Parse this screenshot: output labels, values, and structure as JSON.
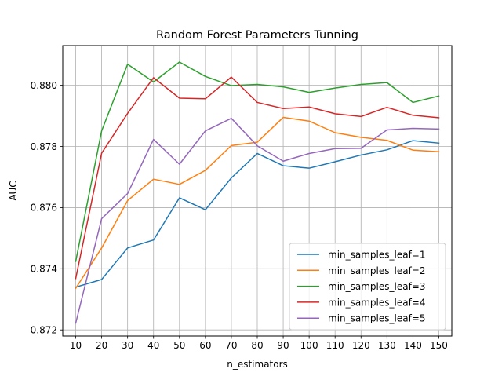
{
  "chart_data": {
    "type": "line",
    "title": "Random Forest Parameters Tunning",
    "xlabel": "n_estimators",
    "ylabel": "AUC",
    "x": [
      10,
      20,
      30,
      40,
      50,
      60,
      70,
      80,
      90,
      100,
      110,
      120,
      130,
      140,
      150
    ],
    "xlim": [
      5,
      155
    ],
    "ylim": [
      0.8718,
      0.8813
    ],
    "yticks": [
      0.872,
      0.874,
      0.876,
      0.878,
      0.88
    ],
    "ytick_labels": [
      "0.872",
      "0.874",
      "0.876",
      "0.878",
      "0.880"
    ],
    "grid": true,
    "legend_position": "lower right",
    "series": [
      {
        "name": "min_samples_leaf=1",
        "color": "#1f77b4",
        "values": [
          0.8734,
          0.87365,
          0.87468,
          0.87494,
          0.87632,
          0.87593,
          0.87697,
          0.87777,
          0.87737,
          0.87729,
          0.8775,
          0.87772,
          0.87789,
          0.87819,
          0.87811
        ]
      },
      {
        "name": "min_samples_leaf=2",
        "color": "#ff7f0e",
        "values": [
          0.87336,
          0.87468,
          0.87623,
          0.87693,
          0.87676,
          0.87722,
          0.87803,
          0.87814,
          0.87895,
          0.87883,
          0.87845,
          0.8783,
          0.8782,
          0.87788,
          0.87783
        ]
      },
      {
        "name": "min_samples_leaf=3",
        "color": "#2ca02c",
        "values": [
          0.87424,
          0.87851,
          0.88069,
          0.88011,
          0.88076,
          0.88029,
          0.87999,
          0.88003,
          0.87995,
          0.87977,
          0.87991,
          0.88003,
          0.88009,
          0.87944,
          0.87965
        ]
      },
      {
        "name": "min_samples_leaf=4",
        "color": "#d62728",
        "values": [
          0.87368,
          0.87778,
          0.87908,
          0.88025,
          0.87958,
          0.87956,
          0.88027,
          0.87944,
          0.87924,
          0.87929,
          0.87907,
          0.87898,
          0.87928,
          0.87902,
          0.87894
        ]
      },
      {
        "name": "min_samples_leaf=5",
        "color": "#9467bd",
        "values": [
          0.87222,
          0.87564,
          0.87646,
          0.87823,
          0.87742,
          0.87851,
          0.87892,
          0.87802,
          0.87752,
          0.87777,
          0.87793,
          0.87794,
          0.87854,
          0.87859,
          0.87857
        ]
      }
    ]
  }
}
